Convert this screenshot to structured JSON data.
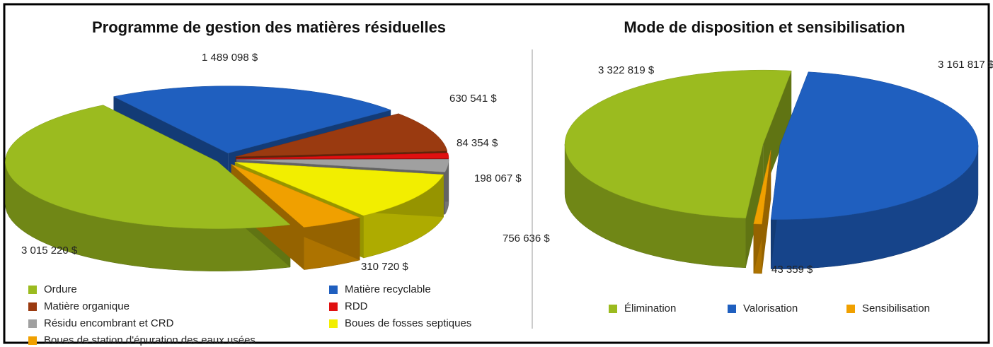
{
  "chart_data": [
    {
      "type": "pie",
      "title": "Programme de gestion des matières résiduelles",
      "categories": [
        "Ordure",
        "Matière recyclable",
        "Matière organique",
        "RDD",
        "Résidu encombrant et CRD",
        "Boues de fosses septiques",
        "Boues de station d'épuration des eaux usées"
      ],
      "values": [
        3015220,
        1489098,
        630541,
        84354,
        198067,
        756636,
        310720
      ],
      "value_labels": [
        "3 015 220 $",
        "1 489 098 $",
        "630 541 $",
        "84 354 $",
        "198 067 $",
        "756 636 $",
        "310 720 $"
      ],
      "colors": [
        "#9bbb1f",
        "#1f5fbf",
        "#9a3a10",
        "#e01010",
        "#a0a0a0",
        "#f2ee00",
        "#f0a000"
      ]
    },
    {
      "type": "pie",
      "title": "Mode de disposition et sensibilisation",
      "categories": [
        "Élimination",
        "Valorisation",
        "Sensibilisation"
      ],
      "values": [
        3322819,
        3161817,
        43359
      ],
      "value_labels": [
        "3 322 819 $",
        "3 161 817 $",
        "43 359 $"
      ],
      "colors": [
        "#9bbb1f",
        "#1f5fbf",
        "#f0a000"
      ]
    }
  ]
}
